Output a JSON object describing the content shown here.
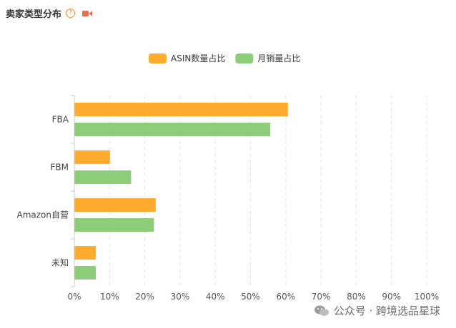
{
  "header": {
    "title": "卖家类型分布",
    "help_icon": "help-circle-icon",
    "video_icon": "video-camera-icon",
    "accent_color": "#ef6c4a"
  },
  "watermark": {
    "text": "公众号 · 跨境选品星球",
    "icon": "wechat-icon"
  },
  "chart_data": {
    "type": "bar",
    "orientation": "horizontal",
    "categories": [
      "FBA",
      "FBM",
      "Amazon自营",
      "未知"
    ],
    "series": [
      {
        "name": "ASIN数量占比",
        "color": "#ffab2e",
        "values": [
          60.5,
          10,
          23,
          6
        ]
      },
      {
        "name": "月销量占比",
        "color": "#8dcc78",
        "values": [
          55.5,
          16,
          22.5,
          6
        ]
      }
    ],
    "xlim": [
      0,
      100
    ],
    "x_ticks": [
      "0%",
      "10%",
      "20%",
      "30%",
      "40%",
      "50%",
      "60%",
      "70%",
      "80%",
      "90%",
      "100%"
    ],
    "legend_position": "top-center",
    "grid": "vertical-dashed"
  }
}
